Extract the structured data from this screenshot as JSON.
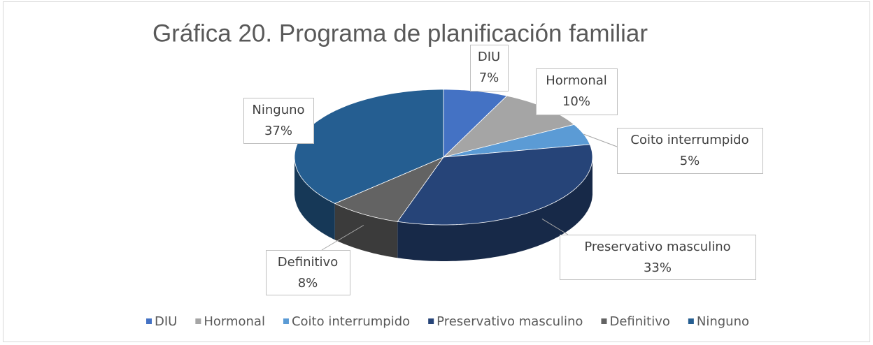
{
  "chart_data": {
    "type": "pie3d",
    "title": "Gráfica 20. Programa de planificación familiar",
    "categories": [
      "DIU",
      "Hormonal",
      "Coito interrumpido",
      "Preservativo masculino",
      "Definitivo",
      "Ninguno"
    ],
    "values": [
      7,
      10,
      5,
      33,
      8,
      37
    ],
    "value_labels": [
      "7%",
      "10%",
      "5%",
      "33%",
      "8%",
      "37%"
    ],
    "colors": [
      "#4472c4",
      "#a5a5a5",
      "#5b9bd5",
      "#264478",
      "#636363",
      "#255e91"
    ],
    "legend": "bottom"
  }
}
